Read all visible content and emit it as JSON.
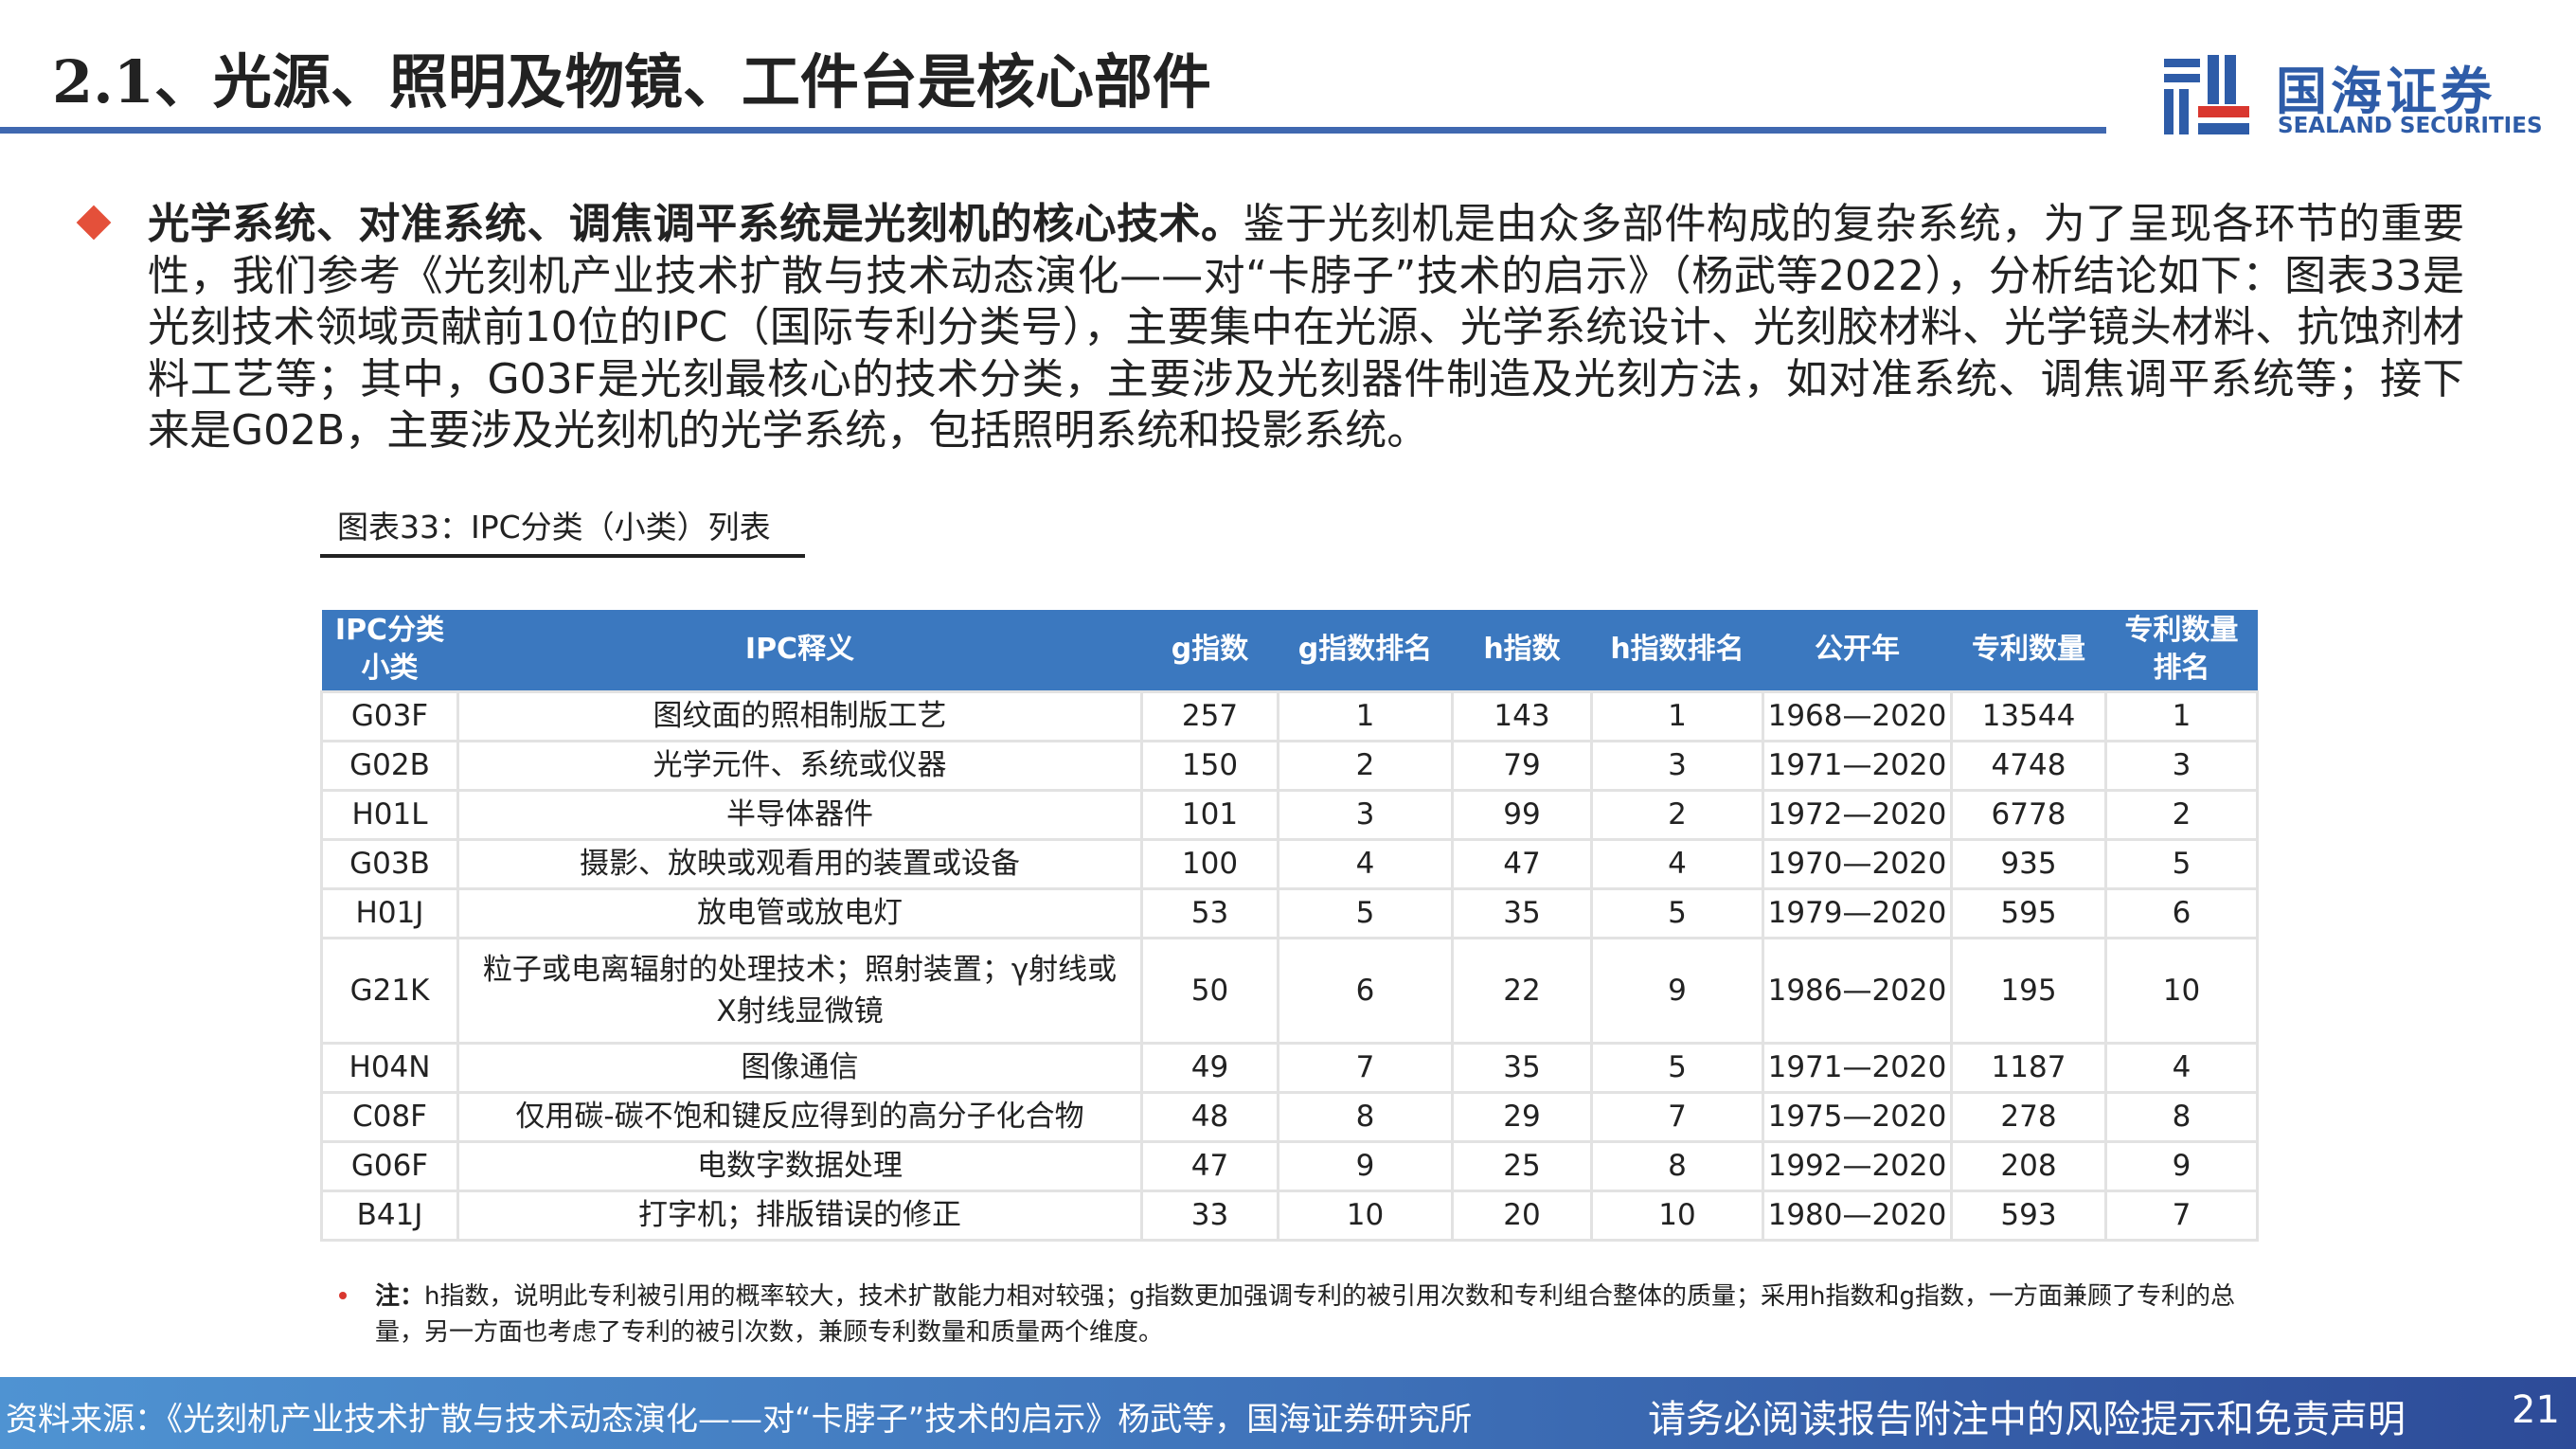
{
  "header": {
    "title": "2.1、光源、照明及物镜、工件台是核心部件"
  },
  "logo": {
    "cn": "国海证券",
    "en": "SEALAND SECURITIES",
    "colors": {
      "blue": "#2e5ca8",
      "red": "#d9372f"
    }
  },
  "body": {
    "bold_lead": "光学系统、对准系统、调焦调平系统是光刻机的核心技术。",
    "text": "鉴于光刻机是由众多部件构成的复杂系统，为了呈现各环节的重要性，我们参考《光刻机产业技术扩散与技术动态演化——对“卡脖子”技术的启示》（杨武等2022），分析结论如下：图表33是光刻技术领域贡献前10位的IPC（国际专利分类号），主要集中在光源、光学系统设计、光刻胶材料、光学镜头材料、抗蚀剂材料工艺等；其中，G03F是光刻最核心的技术分类，主要涉及光刻器件制造及光刻方法，如对准系统、调焦调平系统等；接下来是G02B，主要涉及光刻机的光学系统，包括照明系统和投影系统。"
  },
  "caption": "图表33：IPC分类（小类）列表",
  "table": {
    "headers": [
      "IPC分类小类",
      "IPC释义",
      "g指数",
      "g指数排名",
      "h指数",
      "h指数排名",
      "公开年",
      "专利数量",
      "专利数量排名"
    ],
    "rows": [
      [
        "G03F",
        "图纹面的照相制版工艺",
        "257",
        "1",
        "143",
        "1",
        "1968—2020",
        "13544",
        "1"
      ],
      [
        "G02B",
        "光学元件、系统或仪器",
        "150",
        "2",
        "79",
        "3",
        "1971—2020",
        "4748",
        "3"
      ],
      [
        "H01L",
        "半导体器件",
        "101",
        "3",
        "99",
        "2",
        "1972—2020",
        "6778",
        "2"
      ],
      [
        "G03B",
        "摄影、放映或观看用的装置或设备",
        "100",
        "4",
        "47",
        "4",
        "1970—2020",
        "935",
        "5"
      ],
      [
        "H01J",
        "放电管或放电灯",
        "53",
        "5",
        "35",
        "5",
        "1979—2020",
        "595",
        "6"
      ],
      [
        "G21K",
        "粒子或电离辐射的处理技术；照射装置；γ射线或X射线显微镜",
        "50",
        "6",
        "22",
        "9",
        "1986—2020",
        "195",
        "10"
      ],
      [
        "H04N",
        "图像通信",
        "49",
        "7",
        "35",
        "5",
        "1971—2020",
        "1187",
        "4"
      ],
      [
        "C08F",
        "仅用碳-碳不饱和键反应得到的高分子化合物",
        "48",
        "8",
        "29",
        "7",
        "1975—2020",
        "278",
        "8"
      ],
      [
        "G06F",
        "电数字数据处理",
        "47",
        "9",
        "25",
        "8",
        "1992—2020",
        "208",
        "9"
      ],
      [
        "B41J",
        "打字机；排版错误的修正",
        "33",
        "10",
        "20",
        "10",
        "1980—2020",
        "593",
        "7"
      ]
    ]
  },
  "note": {
    "label": "注：",
    "text": "h指数，说明此专利被引用的概率较大，技术扩散能力相对较强；g指数更加强调专利的被引用次数和专利组合整体的质量；采用h指数和g指数，一方面兼顾了专利的总量，另一方面也考虑了专利的被引次数，兼顾专利数量和质量两个维度。"
  },
  "footer": {
    "source": "资料来源：《光刻机产业技术扩散与技术动态演化——对“卡脖子”技术的启示》杨武等，国海证券研究所",
    "disclaimer": "请务必阅读报告附注中的风险提示和免责声明",
    "page": "21"
  }
}
